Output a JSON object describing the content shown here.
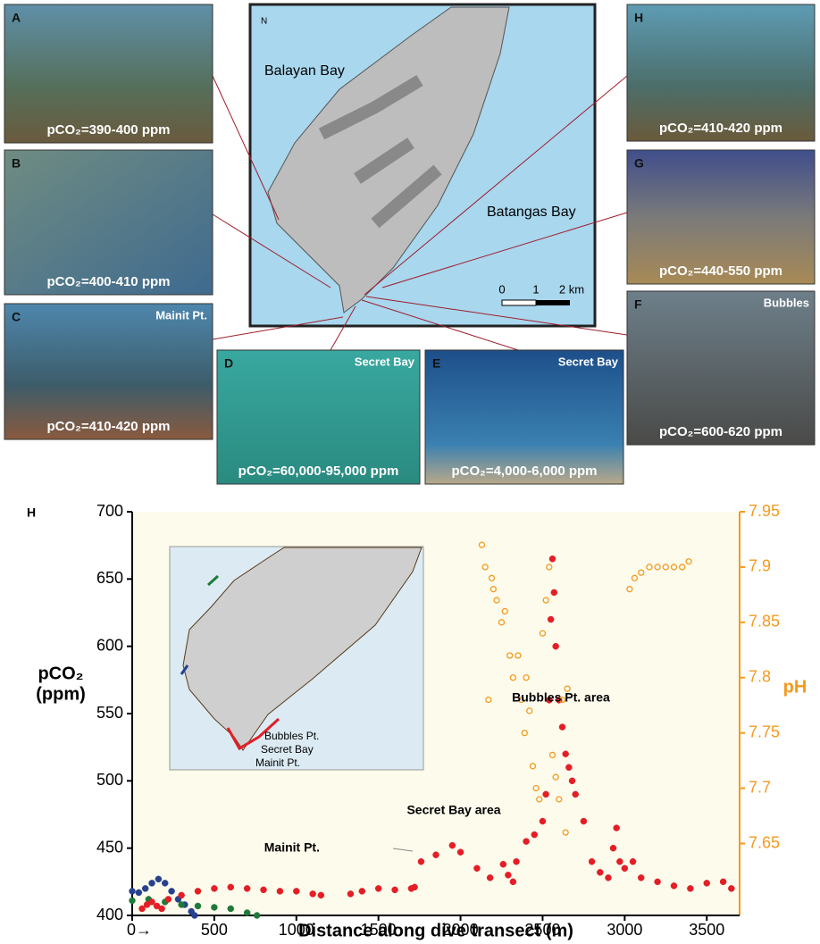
{
  "photos": [
    {
      "label": "A",
      "caption": "pCO₂=390-400 ppm"
    },
    {
      "label": "B",
      "caption": "pCO₂=400-410 ppm"
    },
    {
      "label": "C",
      "caption": "pCO₂=410-420 ppm",
      "place": "Mainit Pt."
    },
    {
      "label": "D",
      "caption": "pCO₂=60,000-95,000 ppm",
      "place": "Secret Bay"
    },
    {
      "label": "E",
      "caption": "pCO₂=4,000-6,000 ppm",
      "place": "Secret Bay"
    },
    {
      "label": "F",
      "caption": "pCO₂=600-620 ppm",
      "place": "Bubbles"
    },
    {
      "label": "G",
      "caption": "pCO₂=440-550 ppm"
    },
    {
      "label": "H",
      "caption": "pCO₂=410-420 ppm"
    }
  ],
  "map": {
    "north": "N",
    "labels": [
      "Balayan Bay",
      "Batangas Bay"
    ],
    "scale": [
      "0",
      "1",
      "2 km"
    ]
  },
  "chart_data": {
    "type": "scatter",
    "panel": "H",
    "x_label": "Distance along dive transect (m)",
    "y_label": [
      "pCO₂",
      "(ppm)"
    ],
    "y2_label": "pH",
    "xlim": [
      0,
      3700
    ],
    "xticks": [
      {
        "value": 0,
        "label": "0→"
      },
      500,
      1000,
      1500,
      2000,
      2500,
      3000,
      3500
    ],
    "ylim": [
      400,
      700
    ],
    "yticks": [
      400,
      450,
      500,
      550,
      600,
      650,
      700
    ],
    "y2lim": [
      7.585,
      7.95
    ],
    "y2ticks": [
      7.65,
      7.7,
      7.75,
      7.8,
      7.85,
      7.9,
      7.95
    ],
    "annotations": [
      "Mainit Pt.",
      "Secret Bay area",
      "Bubbles Pt. area"
    ],
    "inset_labels": [
      "Bubbles Pt.",
      "Secret Bay",
      "Mainit Pt."
    ],
    "series": [
      {
        "color": "#27418f",
        "marker": "filled",
        "x": [
          0,
          40,
          80,
          120,
          160,
          200,
          240,
          280,
          320,
          360,
          380
        ],
        "values": [
          418,
          417,
          420,
          424,
          427,
          424,
          418,
          412,
          408,
          403,
          400
        ]
      },
      {
        "color": "#1e7a3a",
        "marker": "filled",
        "x": [
          0,
          100,
          200,
          300,
          400,
          500,
          600,
          700,
          760
        ],
        "values": [
          411,
          412,
          410,
          408,
          407,
          406,
          405,
          402,
          400
        ]
      },
      {
        "color": "#e41e26",
        "marker": "filled",
        "x": [
          60,
          90,
          120,
          150,
          180,
          220,
          300,
          400,
          500,
          600,
          700,
          800,
          900,
          1000,
          1100,
          1150,
          1330,
          1400,
          1500,
          1600,
          1700,
          1720,
          1760,
          1850,
          1950,
          2000,
          2100,
          2180,
          2260,
          2290,
          2320,
          2340,
          2400,
          2450,
          2500,
          2520,
          2540,
          2550,
          2560,
          2570,
          2580,
          2600,
          2620,
          2640,
          2660,
          2680,
          2700,
          2750,
          2800,
          2850,
          2900,
          2930,
          2950,
          2970,
          3000,
          3050,
          3100,
          3200,
          3300,
          3400,
          3500,
          3600,
          3650
        ],
        "values": [
          405,
          408,
          410,
          407,
          405,
          412,
          415,
          418,
          420,
          421,
          420,
          419,
          418,
          418,
          416,
          415,
          416,
          418,
          420,
          419,
          420,
          421,
          440,
          445,
          452,
          447,
          435,
          428,
          438,
          430,
          425,
          440,
          455,
          460,
          470,
          490,
          560,
          620,
          665,
          640,
          600,
          560,
          540,
          520,
          510,
          500,
          490,
          470,
          440,
          432,
          428,
          450,
          465,
          440,
          435,
          440,
          428,
          425,
          422,
          420,
          424,
          425,
          420
        ]
      },
      {
        "color": "#f39a1e",
        "marker": "open",
        "axis": "y2",
        "x": [
          2130,
          2150,
          2170,
          2190,
          2200,
          2220,
          2250,
          2270,
          2300,
          2320,
          2350,
          2370,
          2390,
          2400,
          2420,
          2440,
          2460,
          2480,
          2500,
          2520,
          2540,
          2560,
          2580,
          2600,
          2620,
          2640,
          2650,
          3030,
          3060,
          3100,
          3150,
          3200,
          3250,
          3300,
          3350,
          3390
        ],
        "values": [
          7.92,
          7.9,
          7.78,
          7.89,
          7.88,
          7.87,
          7.85,
          7.86,
          7.82,
          7.8,
          7.82,
          7.78,
          7.75,
          7.8,
          7.77,
          7.72,
          7.7,
          7.69,
          7.84,
          7.87,
          7.9,
          7.73,
          7.71,
          7.69,
          7.78,
          7.66,
          7.79,
          7.88,
          7.89,
          7.895,
          7.9,
          7.9,
          7.9,
          7.9,
          7.9,
          7.905
        ]
      }
    ]
  }
}
